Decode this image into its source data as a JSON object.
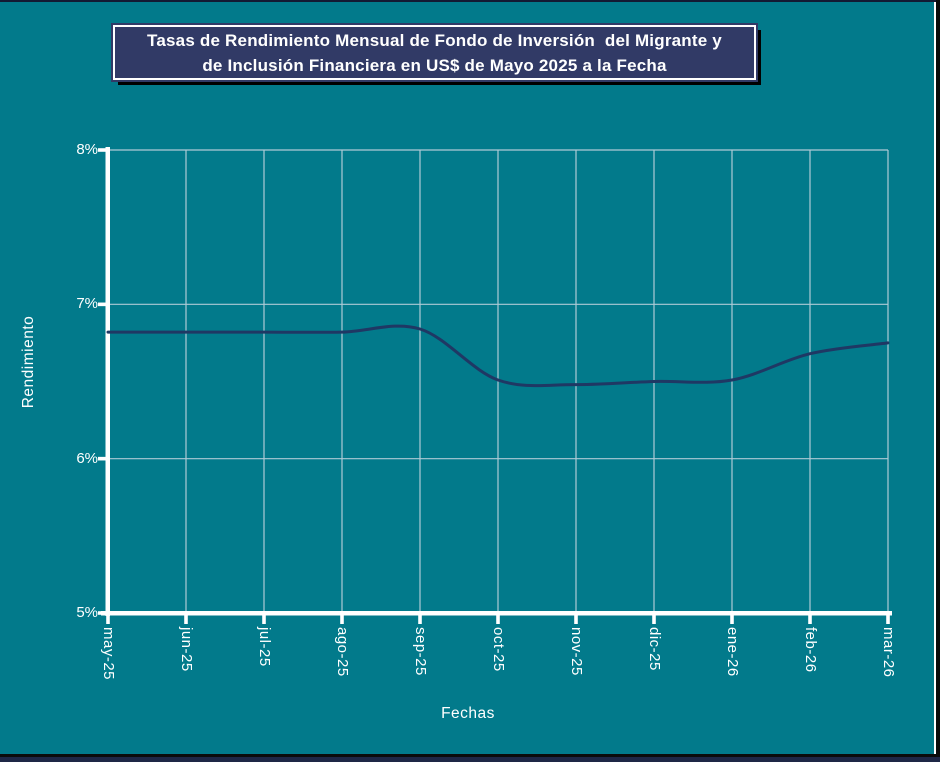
{
  "colors": {
    "background": "#027A8B",
    "title_bg": "#313A66",
    "title_border": "#FFFFFF",
    "title_shadow": "#000000",
    "line": "#1F3864",
    "gridline": "#AECBD6",
    "axis": "#FFFFFF",
    "text": "#FFFFFF",
    "frame": "#0B0B0B",
    "bottom_strip": "#1E2746"
  },
  "title": {
    "line1": "Tasas de Rendimiento Mensual de Fondo de Inversión  del Migrante y",
    "line2": "de Inclusión Financiera en US$ de Mayo 2025 a la Fecha"
  },
  "chart_data": {
    "type": "line",
    "title": "Tasas de Rendimiento Mensual de Fondo de Inversión del Migrante y de Inclusión Financiera en US$ de Mayo 2025 a la Fecha",
    "categories": [
      "may-25",
      "jun-25",
      "jul-25",
      "ago-25",
      "sep-25",
      "oct-25",
      "nov-25",
      "dic-25",
      "ene-26",
      "feb-26",
      "mar-26"
    ],
    "series": [
      {
        "name": "Rendimiento",
        "values": [
          6.82,
          6.82,
          6.82,
          6.82,
          6.84,
          6.51,
          6.48,
          6.5,
          6.51,
          6.68,
          6.75
        ]
      }
    ],
    "xlabel": "Fechas",
    "ylabel": "Rendimiento",
    "ylim": [
      5,
      8
    ],
    "yticks": [
      8,
      7,
      6,
      5
    ],
    "ytick_labels": [
      "8%",
      "7%",
      "6%",
      "5%"
    ],
    "grid": true,
    "smooth": true,
    "legend": "none"
  }
}
